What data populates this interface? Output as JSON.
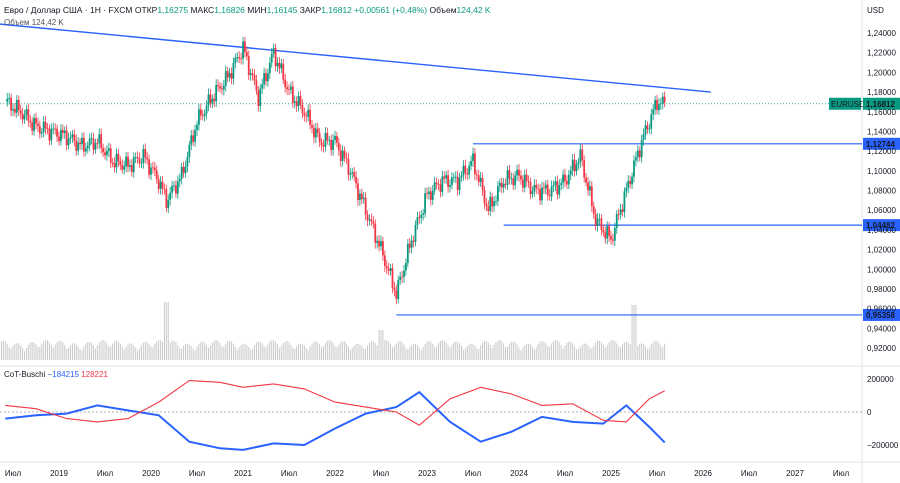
{
  "header": {
    "symbol": "Евро / Доллар США · 1Н · FXCM",
    "open_label": "ОТКР",
    "open": "1,16275",
    "high_label": "МАКС",
    "high": "1,16826",
    "low_label": "МИН",
    "low": "1,16145",
    "close_label": "ЗАКР",
    "close": "1,16812",
    "change": "+0,00561 (+0,48%)",
    "volume_label": "Объем",
    "volume": "124,42 K",
    "volume_pane_label": "Объем",
    "volume_pane_value": "124,42 K"
  },
  "indicator": {
    "name": "CoT-Buschi",
    "value_blue": "−184215",
    "value_red": "128221",
    "color_blue": "#2962ff",
    "color_red": "#f23645"
  },
  "colors": {
    "up": "#089981",
    "down": "#f23645",
    "level": "#2962ff",
    "trend": "#2962ff",
    "volume": "#c9c9cc"
  },
  "currency": "USD",
  "chart_data": {
    "type": "line",
    "title": "Евро / Доллар США · 1Н · FXCM",
    "instrument_label": "EURUSD",
    "last_price": "1,16812",
    "x_labels": [
      "Июл",
      "2019",
      "Июл",
      "2020",
      "Июл",
      "2021",
      "Июл",
      "2022",
      "Июл",
      "2023",
      "Июл",
      "2024",
      "Июл",
      "2025",
      "Июл",
      "2026",
      "Июл",
      "2027",
      "Июл"
    ],
    "x_dates": [
      "2018-07",
      "2019-01",
      "2019-07",
      "2020-01",
      "2020-07",
      "2021-01",
      "2021-07",
      "2022-01",
      "2022-07",
      "2023-01",
      "2023-07",
      "2024-01",
      "2024-07",
      "2025-01",
      "2025-07",
      "2026-01",
      "2026-07",
      "2027-01",
      "2027-07"
    ],
    "price_ticks": [
      "1,24000",
      "1,22000",
      "1,20000",
      "1,18000",
      "1,16000",
      "1,14000",
      "1,12000",
      "1,10000",
      "1,08000",
      "1,06000",
      "1,04000",
      "1,02000",
      "1,00000",
      "0,98000",
      "0,96000",
      "0,94000",
      "0,92000"
    ],
    "ylim": [
      0.91,
      1.245
    ],
    "price_series": {
      "name": "EURUSD",
      "dates": [
        "2018-06",
        "2018-08",
        "2018-10",
        "2018-12",
        "2019-02",
        "2019-04",
        "2019-06",
        "2019-08",
        "2019-10",
        "2019-12",
        "2020-02",
        "2020-03",
        "2020-05",
        "2020-07",
        "2020-09",
        "2020-11",
        "2021-01",
        "2021-03",
        "2021-05",
        "2021-07",
        "2021-09",
        "2021-11",
        "2022-01",
        "2022-03",
        "2022-05",
        "2022-07",
        "2022-09",
        "2022-11",
        "2023-01",
        "2023-03",
        "2023-05",
        "2023-07",
        "2023-09",
        "2023-11",
        "2024-01",
        "2024-03",
        "2024-05",
        "2024-07",
        "2024-09",
        "2024-11",
        "2025-01",
        "2025-03",
        "2025-05",
        "2025-07",
        "2025-08"
      ],
      "values": [
        1.17,
        1.16,
        1.145,
        1.14,
        1.135,
        1.125,
        1.13,
        1.11,
        1.105,
        1.115,
        1.09,
        1.07,
        1.095,
        1.15,
        1.175,
        1.195,
        1.225,
        1.175,
        1.22,
        1.18,
        1.16,
        1.13,
        1.13,
        1.1,
        1.06,
        1.02,
        0.975,
        1.03,
        1.075,
        1.09,
        1.09,
        1.11,
        1.06,
        1.09,
        1.095,
        1.08,
        1.08,
        1.09,
        1.115,
        1.05,
        1.03,
        1.08,
        1.13,
        1.17,
        1.168
      ]
    },
    "levels": [
      {
        "price": 1.12744,
        "label": "1,12744",
        "start": "2023-07"
      },
      {
        "price": 1.04482,
        "label": "1,04482",
        "start": "2023-11"
      },
      {
        "price": 0.95358,
        "label": "0,95358",
        "start": "2022-09"
      }
    ],
    "trendline": {
      "start": {
        "date": "2018-04",
        "price": 1.25
      },
      "end": {
        "date": "2026-02",
        "price": 1.18
      }
    },
    "cot": {
      "name": "CoT-Buschi",
      "ticks": [
        "200000",
        "0",
        "−200000"
      ],
      "ylim": [
        -280000,
        260000
      ],
      "dates": [
        "2018-06",
        "2018-10",
        "2019-02",
        "2019-06",
        "2019-10",
        "2020-02",
        "2020-06",
        "2020-10",
        "2021-01",
        "2021-05",
        "2021-09",
        "2022-01",
        "2022-05",
        "2022-09",
        "2022-12",
        "2023-04",
        "2023-08",
        "2023-12",
        "2024-04",
        "2024-08",
        "2024-12",
        "2025-03",
        "2025-06",
        "2025-08"
      ],
      "series": [
        {
          "name": "",
          "values": [
            -40000,
            -20000,
            -10000,
            40000,
            10000,
            -20000,
            -180000,
            -220000,
            -230000,
            -190000,
            -200000,
            -100000,
            -10000,
            30000,
            120000,
            -60000,
            -180000,
            -120000,
            -30000,
            -60000,
            -70000,
            40000,
            -90000,
            -184215
          ]
        },
        {
          "name": "",
          "values": [
            40000,
            20000,
            -40000,
            -60000,
            -40000,
            60000,
            190000,
            180000,
            150000,
            170000,
            140000,
            60000,
            30000,
            0,
            -80000,
            80000,
            150000,
            110000,
            40000,
            50000,
            -50000,
            -60000,
            80000,
            128221
          ]
        }
      ]
    }
  }
}
